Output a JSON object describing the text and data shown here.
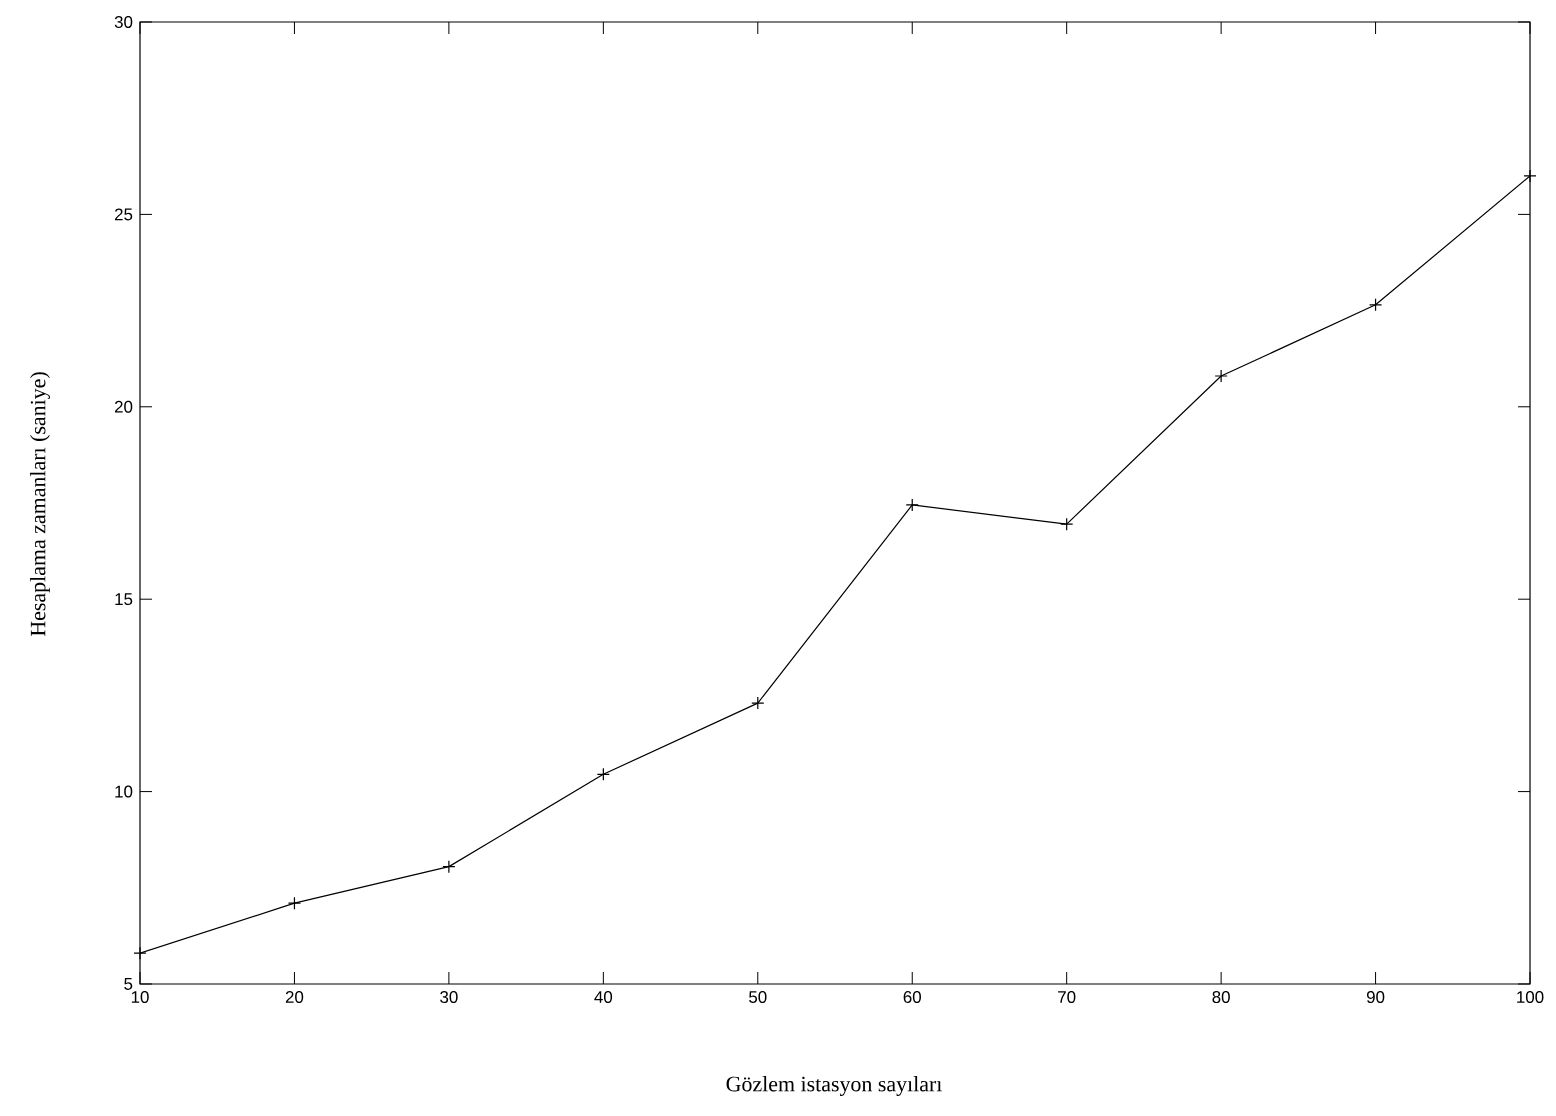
{
  "chart_data": {
    "type": "line",
    "xlabel": "Gözlem istasyon sayıları",
    "ylabel": "Hesaplama zamanları (saniye)",
    "x": [
      10,
      20,
      30,
      40,
      50,
      60,
      70,
      80,
      90,
      100
    ],
    "series": [
      {
        "color": "#000000",
        "values": [
          5.8,
          7.1,
          8.05,
          10.45,
          12.3,
          17.45,
          16.95,
          20.8,
          22.65,
          26.0
        ]
      }
    ],
    "xlim": [
      10,
      100
    ],
    "ylim": [
      5,
      30
    ],
    "xticks": [
      10,
      20,
      30,
      40,
      50,
      60,
      70,
      80,
      90,
      100
    ],
    "yticks": [
      5,
      10,
      15,
      20,
      25,
      30
    ],
    "grid": false,
    "marker": "cross",
    "line_style": "solid"
  }
}
